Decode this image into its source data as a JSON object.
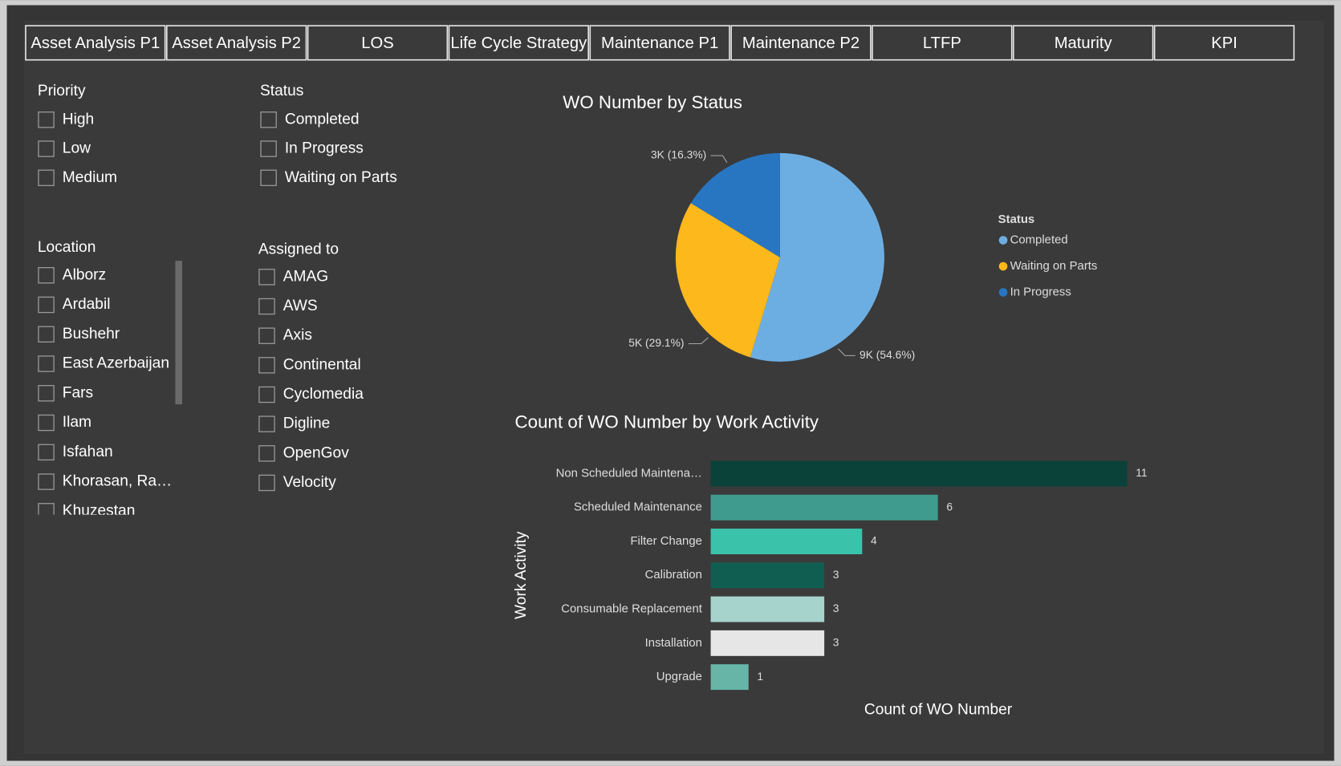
{
  "tabs": [
    "Asset Analysis P1",
    "Asset Analysis P2",
    "LOS",
    "Life Cycle Strategy",
    "Maintenance P1",
    "Maintenance P2",
    "LTFP",
    "Maturity",
    "KPI"
  ],
  "slicers": [
    {
      "title": "Priority",
      "items": [
        "High",
        "Low",
        "Medium"
      ]
    },
    {
      "title": "Status",
      "items": [
        "Completed",
        "In Progress",
        "Waiting on Parts"
      ]
    },
    {
      "title": "Location",
      "items": [
        "Alborz",
        "Ardabil",
        "Bushehr",
        "East Azerbaijan",
        "Fars",
        "Ilam",
        "Isfahan",
        "Khorasan, Ra…",
        "Khuzestan"
      ]
    },
    {
      "title": "Assigned to",
      "items": [
        "AMAG",
        "AWS",
        "Axis",
        "Continental",
        "Cyclomedia",
        "Digline",
        "OpenGov",
        "Velocity"
      ]
    }
  ],
  "chart_data": [
    {
      "type": "pie",
      "title": "WO Number by Status",
      "legend_title": "Status",
      "legend": "right",
      "categories": [
        "Completed",
        "Waiting on Parts",
        "In Progress"
      ],
      "values": [
        54.6,
        29.1,
        16.3
      ],
      "value_labels": [
        "9K (54.6%)",
        "5K (29.1%)",
        "3K (16.3%)"
      ],
      "colors": [
        "#6daee2",
        "#fdb81c",
        "#2876c2"
      ]
    },
    {
      "type": "bar",
      "orientation": "horizontal",
      "title": "Count of WO Number by Work Activity",
      "xlabel": "Count of WO Number",
      "ylabel": "Work Activity",
      "categories": [
        "Non Scheduled Maintena…",
        "Scheduled Maintenance",
        "Filter Change",
        "Calibration",
        "Consumable Replacement",
        "Installation",
        "Upgrade"
      ],
      "values": [
        11,
        6,
        4,
        3,
        3,
        3,
        1
      ],
      "colors": [
        "#0a4239",
        "#3f9b8d",
        "#3bc2ab",
        "#0f5e51",
        "#a6d4cd",
        "#e6e6e6",
        "#66b5a7"
      ]
    }
  ]
}
